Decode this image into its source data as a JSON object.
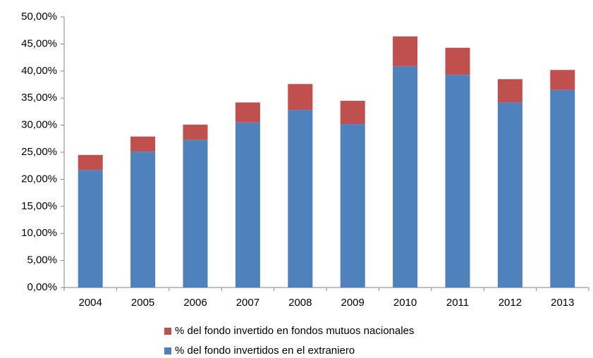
{
  "chart_data": {
    "type": "stacked_bar",
    "categories": [
      "2004",
      "2005",
      "2006",
      "2007",
      "2008",
      "2009",
      "2010",
      "2011",
      "2012",
      "2013"
    ],
    "series": [
      {
        "name": "% del fondo invertidos en el extraniero",
        "color": "#4f81bd",
        "values": [
          21.7,
          25.1,
          27.3,
          30.5,
          32.8,
          30.2,
          40.9,
          39.3,
          34.2,
          36.5
        ]
      },
      {
        "name": "% del fondo invertido en fondos mutuos nacionales",
        "color": "#c0504d",
        "values": [
          2.8,
          2.8,
          2.8,
          3.7,
          4.8,
          4.3,
          5.5,
          5.0,
          4.3,
          3.7
        ]
      }
    ],
    "ylim": [
      0,
      50
    ],
    "yticks": [
      {
        "value": 0,
        "label": "0,00%"
      },
      {
        "value": 5,
        "label": "5,00%"
      },
      {
        "value": 10,
        "label": "10,00%"
      },
      {
        "value": 15,
        "label": "15,00%"
      },
      {
        "value": 20,
        "label": "20,00%"
      },
      {
        "value": 25,
        "label": "25,00%"
      },
      {
        "value": 30,
        "label": "30,00%"
      },
      {
        "value": 35,
        "label": "35,00%"
      },
      {
        "value": 40,
        "label": "40,00%"
      },
      {
        "value": 45,
        "label": "45,00%"
      },
      {
        "value": 50,
        "label": "50,00%"
      }
    ],
    "grid": false
  }
}
